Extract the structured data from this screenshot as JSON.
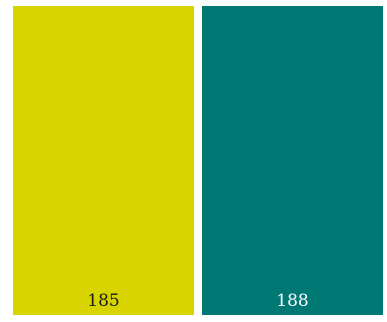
{
  "tiles": [
    {
      "label": "185",
      "color": "#d8d400",
      "text_color": "#1a1a1a"
    },
    {
      "label": "188",
      "color": "#007874",
      "text_color": "#ffffff"
    }
  ]
}
